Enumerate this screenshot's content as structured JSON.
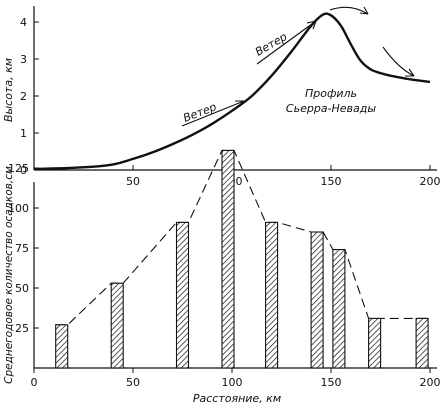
{
  "chart_data": [
    {
      "type": "line",
      "title": "",
      "ylabel": "Высота, км",
      "xlim": [
        0,
        200
      ],
      "ylim": [
        0,
        4.3
      ],
      "yticks": [
        0,
        1,
        2,
        3,
        4
      ],
      "xticks": [
        50,
        100,
        150,
        200
      ],
      "annotations": [
        "Ветер",
        "Ветер",
        "Профиль",
        "Сьерра-Невады"
      ],
      "series": [
        {
          "x": [
            0,
            10,
            20,
            30,
            40,
            50,
            60,
            70,
            80,
            90,
            100,
            110,
            120,
            130,
            140,
            146,
            150,
            155,
            160,
            165,
            170,
            175,
            180,
            190,
            200
          ],
          "y": [
            0.03,
            0.04,
            0.06,
            0.09,
            0.15,
            0.3,
            0.48,
            0.7,
            0.95,
            1.25,
            1.6,
            2.0,
            2.55,
            3.2,
            3.9,
            4.2,
            4.18,
            3.9,
            3.4,
            2.95,
            2.72,
            2.62,
            2.55,
            2.45,
            2.38
          ]
        }
      ]
    },
    {
      "type": "bar",
      "ylabel": "Среднегодовое количество осадков,см",
      "xlabel": "Расстояние, км",
      "xlim": [
        0,
        200
      ],
      "ylim": [
        0,
        140
      ],
      "yticks": [
        25,
        50,
        75,
        100,
        125
      ],
      "xticks": [
        0,
        50,
        100,
        150,
        200
      ],
      "categories": [
        14,
        42,
        75,
        98,
        120,
        143,
        154,
        172,
        196
      ],
      "values": [
        27,
        53,
        91,
        136,
        91,
        85,
        74,
        31,
        31
      ]
    }
  ]
}
